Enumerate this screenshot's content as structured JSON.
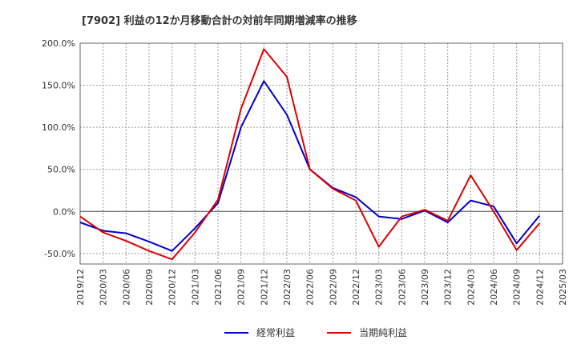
{
  "chart_data": {
    "type": "line",
    "title": "[7902]  利益の12か月移動合計の対前年同期増減率の推移",
    "xlabel": "",
    "ylabel": "",
    "ylim": [
      -62.5,
      200
    ],
    "y_ticks": [
      200,
      150,
      100,
      50,
      0,
      -50
    ],
    "y_tick_labels": [
      "200.0%",
      "150.0%",
      "100.0%",
      "50.0%",
      "0.0%",
      "-50.0%"
    ],
    "x_labels": [
      "2019/12",
      "2020/03",
      "2020/06",
      "2020/09",
      "2020/12",
      "2021/03",
      "2021/06",
      "2021/09",
      "2021/12",
      "2022/03",
      "2022/06",
      "2022/09",
      "2022/12",
      "2023/03",
      "2023/06",
      "2023/09",
      "2023/12",
      "2024/03",
      "2024/06",
      "2024/09",
      "2024/12",
      "2025/03"
    ],
    "x": [
      "2019/12",
      "2020/01",
      "2020/02",
      "2020/03",
      "2020/04",
      "2020/05",
      "2020/06",
      "2020/07",
      "2020/08",
      "2020/09",
      "2020/10",
      "2020/11",
      "2020/12",
      "2021/01",
      "2021/02",
      "2021/03",
      "2021/04",
      "2021/05",
      "2021/06",
      "2021/07",
      "2021/08",
      "2021/09",
      "2021/10",
      "2021/11",
      "2021/12",
      "2022/01",
      "2022/02",
      "2022/03",
      "2022/04",
      "2022/05",
      "2022/06",
      "2022/07",
      "2022/08",
      "2022/09",
      "2022/10",
      "2022/11",
      "2022/12",
      "2023/01",
      "2023/02",
      "2023/03",
      "2023/04",
      "2023/05",
      "2023/06",
      "2023/07",
      "2023/08",
      "2023/09",
      "2023/10",
      "2023/11",
      "2023/12",
      "2024/01",
      "2024/02",
      "2024/03",
      "2024/04",
      "2024/05",
      "2024/06",
      "2024/07",
      "2024/08",
      "2024/09",
      "2024/10",
      "2024/11",
      "2024/12",
      "2025/01",
      "2025/02",
      "2025/03"
    ],
    "series": [
      {
        "name": "経常利益",
        "color": "#0000cc",
        "values": [
          -13,
          null,
          null,
          -23,
          null,
          null,
          -26,
          null,
          null,
          -36,
          null,
          null,
          -47,
          null,
          null,
          -20,
          null,
          null,
          10,
          null,
          null,
          100,
          null,
          null,
          155,
          null,
          null,
          115,
          null,
          null,
          50,
          null,
          null,
          28,
          null,
          null,
          17,
          null,
          null,
          -6,
          null,
          null,
          -9,
          null,
          null,
          1,
          null,
          null,
          -13,
          null,
          null,
          13,
          null,
          null,
          6,
          null,
          null,
          -38,
          null,
          null,
          -5,
          null,
          null,
          null
        ]
      },
      {
        "name": "当期純利益",
        "color": "#dd0000",
        "values": [
          -6,
          null,
          null,
          -25,
          null,
          null,
          -35,
          null,
          null,
          -47,
          null,
          null,
          -57,
          null,
          null,
          -25,
          null,
          null,
          14,
          null,
          null,
          122,
          null,
          null,
          193,
          null,
          null,
          160,
          null,
          null,
          50,
          null,
          null,
          27,
          null,
          null,
          13,
          null,
          null,
          -42,
          null,
          null,
          -6,
          null,
          null,
          2,
          null,
          null,
          -11,
          null,
          null,
          43,
          null,
          null,
          0,
          null,
          null,
          -46,
          null,
          null,
          -14,
          null,
          null,
          null
        ]
      }
    ],
    "grid": true,
    "legend_position": "bottom-center"
  }
}
